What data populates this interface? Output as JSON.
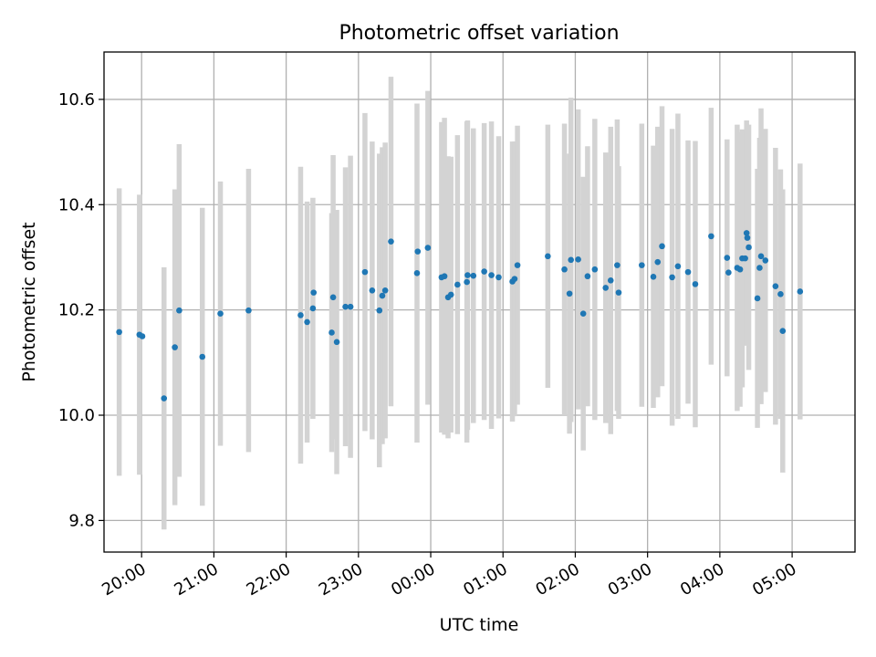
{
  "chart_data": {
    "type": "scatter",
    "title": "Photometric offset variation",
    "xlabel": "UTC time",
    "ylabel": "Photometric offset",
    "x_unit": "hours after 19:00 UTC",
    "xlim": [
      0.48,
      10.87
    ],
    "ylim": [
      9.74,
      10.69
    ],
    "x_ticks": [
      {
        "x": 1.0,
        "label": "20:00"
      },
      {
        "x": 2.0,
        "label": "21:00"
      },
      {
        "x": 3.0,
        "label": "22:00"
      },
      {
        "x": 4.0,
        "label": "23:00"
      },
      {
        "x": 5.0,
        "label": "00:00"
      },
      {
        "x": 6.0,
        "label": "01:00"
      },
      {
        "x": 7.0,
        "label": "02:00"
      },
      {
        "x": 8.0,
        "label": "03:00"
      },
      {
        "x": 9.0,
        "label": "04:00"
      },
      {
        "x": 10.0,
        "label": "05:00"
      }
    ],
    "y_ticks": [
      {
        "y": 9.8,
        "label": "9.8"
      },
      {
        "y": 10.0,
        "label": "10.0"
      },
      {
        "y": 10.2,
        "label": "10.2"
      },
      {
        "y": 10.4,
        "label": "10.4"
      },
      {
        "y": 10.6,
        "label": "10.6"
      }
    ],
    "grid": true,
    "point_color": "#1f77b4",
    "errorbar_color": "#d3d3d3",
    "points": [
      {
        "x": 0.69,
        "y": 10.158,
        "err": 0.273
      },
      {
        "x": 0.97,
        "y": 10.153,
        "err": 0.266
      },
      {
        "x": 1.01,
        "y": 10.15
      },
      {
        "x": 1.31,
        "y": 10.032,
        "err": 0.249
      },
      {
        "x": 1.46,
        "y": 10.129,
        "err": 0.3
      },
      {
        "x": 1.52,
        "y": 10.199,
        "err": 0.316
      },
      {
        "x": 1.84,
        "y": 10.111,
        "err": 0.283
      },
      {
        "x": 2.09,
        "y": 10.193,
        "err": 0.251
      },
      {
        "x": 2.48,
        "y": 10.199,
        "err": 0.269
      },
      {
        "x": 3.2,
        "y": 10.19,
        "err": 0.282
      },
      {
        "x": 3.29,
        "y": 10.177,
        "err": 0.229
      },
      {
        "x": 3.37,
        "y": 10.203,
        "err": 0.21
      },
      {
        "x": 3.38,
        "y": 10.233
      },
      {
        "x": 3.63,
        "y": 10.157,
        "err": 0.227
      },
      {
        "x": 3.65,
        "y": 10.224,
        "err": 0.27
      },
      {
        "x": 3.7,
        "y": 10.139,
        "err": 0.251
      },
      {
        "x": 3.82,
        "y": 10.206,
        "err": 0.265
      },
      {
        "x": 3.89,
        "y": 10.206,
        "err": 0.287
      },
      {
        "x": 4.09,
        "y": 10.272,
        "err": 0.302
      },
      {
        "x": 4.19,
        "y": 10.237,
        "err": 0.283
      },
      {
        "x": 4.29,
        "y": 10.199,
        "err": 0.298
      },
      {
        "x": 4.33,
        "y": 10.227,
        "err": 0.282
      },
      {
        "x": 4.37,
        "y": 10.237,
        "err": 0.281
      },
      {
        "x": 4.45,
        "y": 10.33,
        "err": 0.313
      },
      {
        "x": 4.81,
        "y": 10.27,
        "err": 0.322
      },
      {
        "x": 4.82,
        "y": 10.311
      },
      {
        "x": 4.96,
        "y": 10.318,
        "err": 0.298
      },
      {
        "x": 5.15,
        "y": 10.262,
        "err": 0.295
      },
      {
        "x": 5.19,
        "y": 10.264,
        "err": 0.301
      },
      {
        "x": 5.24,
        "y": 10.224,
        "err": 0.268
      },
      {
        "x": 5.28,
        "y": 10.229,
        "err": 0.262
      },
      {
        "x": 5.37,
        "y": 10.248,
        "err": 0.284
      },
      {
        "x": 5.5,
        "y": 10.253,
        "err": 0.305
      },
      {
        "x": 5.51,
        "y": 10.266,
        "err": 0.294
      },
      {
        "x": 5.59,
        "y": 10.265,
        "err": 0.28
      },
      {
        "x": 5.74,
        "y": 10.273,
        "err": 0.282
      },
      {
        "x": 5.84,
        "y": 10.266,
        "err": 0.292
      },
      {
        "x": 5.94,
        "y": 10.262,
        "err": 0.268
      },
      {
        "x": 6.13,
        "y": 10.254,
        "err": 0.266
      },
      {
        "x": 6.16,
        "y": 10.259,
        "err": 0.261
      },
      {
        "x": 6.2,
        "y": 10.285,
        "err": 0.265
      },
      {
        "x": 6.62,
        "y": 10.302,
        "err": 0.25
      },
      {
        "x": 6.85,
        "y": 10.277,
        "err": 0.277
      },
      {
        "x": 6.92,
        "y": 10.231,
        "err": 0.266
      },
      {
        "x": 6.94,
        "y": 10.295,
        "err": 0.308
      },
      {
        "x": 7.04,
        "y": 10.296,
        "err": 0.285
      },
      {
        "x": 7.11,
        "y": 10.193,
        "err": 0.26
      },
      {
        "x": 7.17,
        "y": 10.264,
        "err": 0.247
      },
      {
        "x": 7.27,
        "y": 10.277,
        "err": 0.286
      },
      {
        "x": 7.42,
        "y": 10.242,
        "err": 0.257
      },
      {
        "x": 7.49,
        "y": 10.256,
        "err": 0.292
      },
      {
        "x": 7.58,
        "y": 10.285,
        "err": 0.277
      },
      {
        "x": 7.6,
        "y": 10.233,
        "err": 0.24
      },
      {
        "x": 7.92,
        "y": 10.285,
        "err": 0.269
      },
      {
        "x": 8.08,
        "y": 10.263,
        "err": 0.249
      },
      {
        "x": 8.14,
        "y": 10.291,
        "err": 0.257
      },
      {
        "x": 8.2,
        "y": 10.321,
        "err": 0.266
      },
      {
        "x": 8.34,
        "y": 10.262,
        "err": 0.282
      },
      {
        "x": 8.42,
        "y": 10.283,
        "err": 0.29
      },
      {
        "x": 8.56,
        "y": 10.272,
        "err": 0.25
      },
      {
        "x": 8.66,
        "y": 10.249,
        "err": 0.272
      },
      {
        "x": 8.88,
        "y": 10.34,
        "err": 0.244
      },
      {
        "x": 9.1,
        "y": 10.299,
        "err": 0.225
      },
      {
        "x": 9.12,
        "y": 10.271
      },
      {
        "x": 9.24,
        "y": 10.28,
        "err": 0.272
      },
      {
        "x": 9.28,
        "y": 10.277,
        "err": 0.261
      },
      {
        "x": 9.31,
        "y": 10.298,
        "err": 0.245
      },
      {
        "x": 9.35,
        "y": 10.298
      },
      {
        "x": 9.37,
        "y": 10.346,
        "err": 0.214
      },
      {
        "x": 9.38,
        "y": 10.337
      },
      {
        "x": 9.4,
        "y": 10.319,
        "err": 0.233
      },
      {
        "x": 9.52,
        "y": 10.222,
        "err": 0.246
      },
      {
        "x": 9.55,
        "y": 10.28,
        "err": 0.247
      },
      {
        "x": 9.57,
        "y": 10.302,
        "err": 0.281
      },
      {
        "x": 9.63,
        "y": 10.294,
        "err": 0.25
      },
      {
        "x": 9.77,
        "y": 10.245,
        "err": 0.263
      },
      {
        "x": 9.84,
        "y": 10.23,
        "err": 0.237
      },
      {
        "x": 9.87,
        "y": 10.16,
        "err": 0.269
      },
      {
        "x": 10.11,
        "y": 10.235,
        "err": 0.243
      }
    ]
  }
}
